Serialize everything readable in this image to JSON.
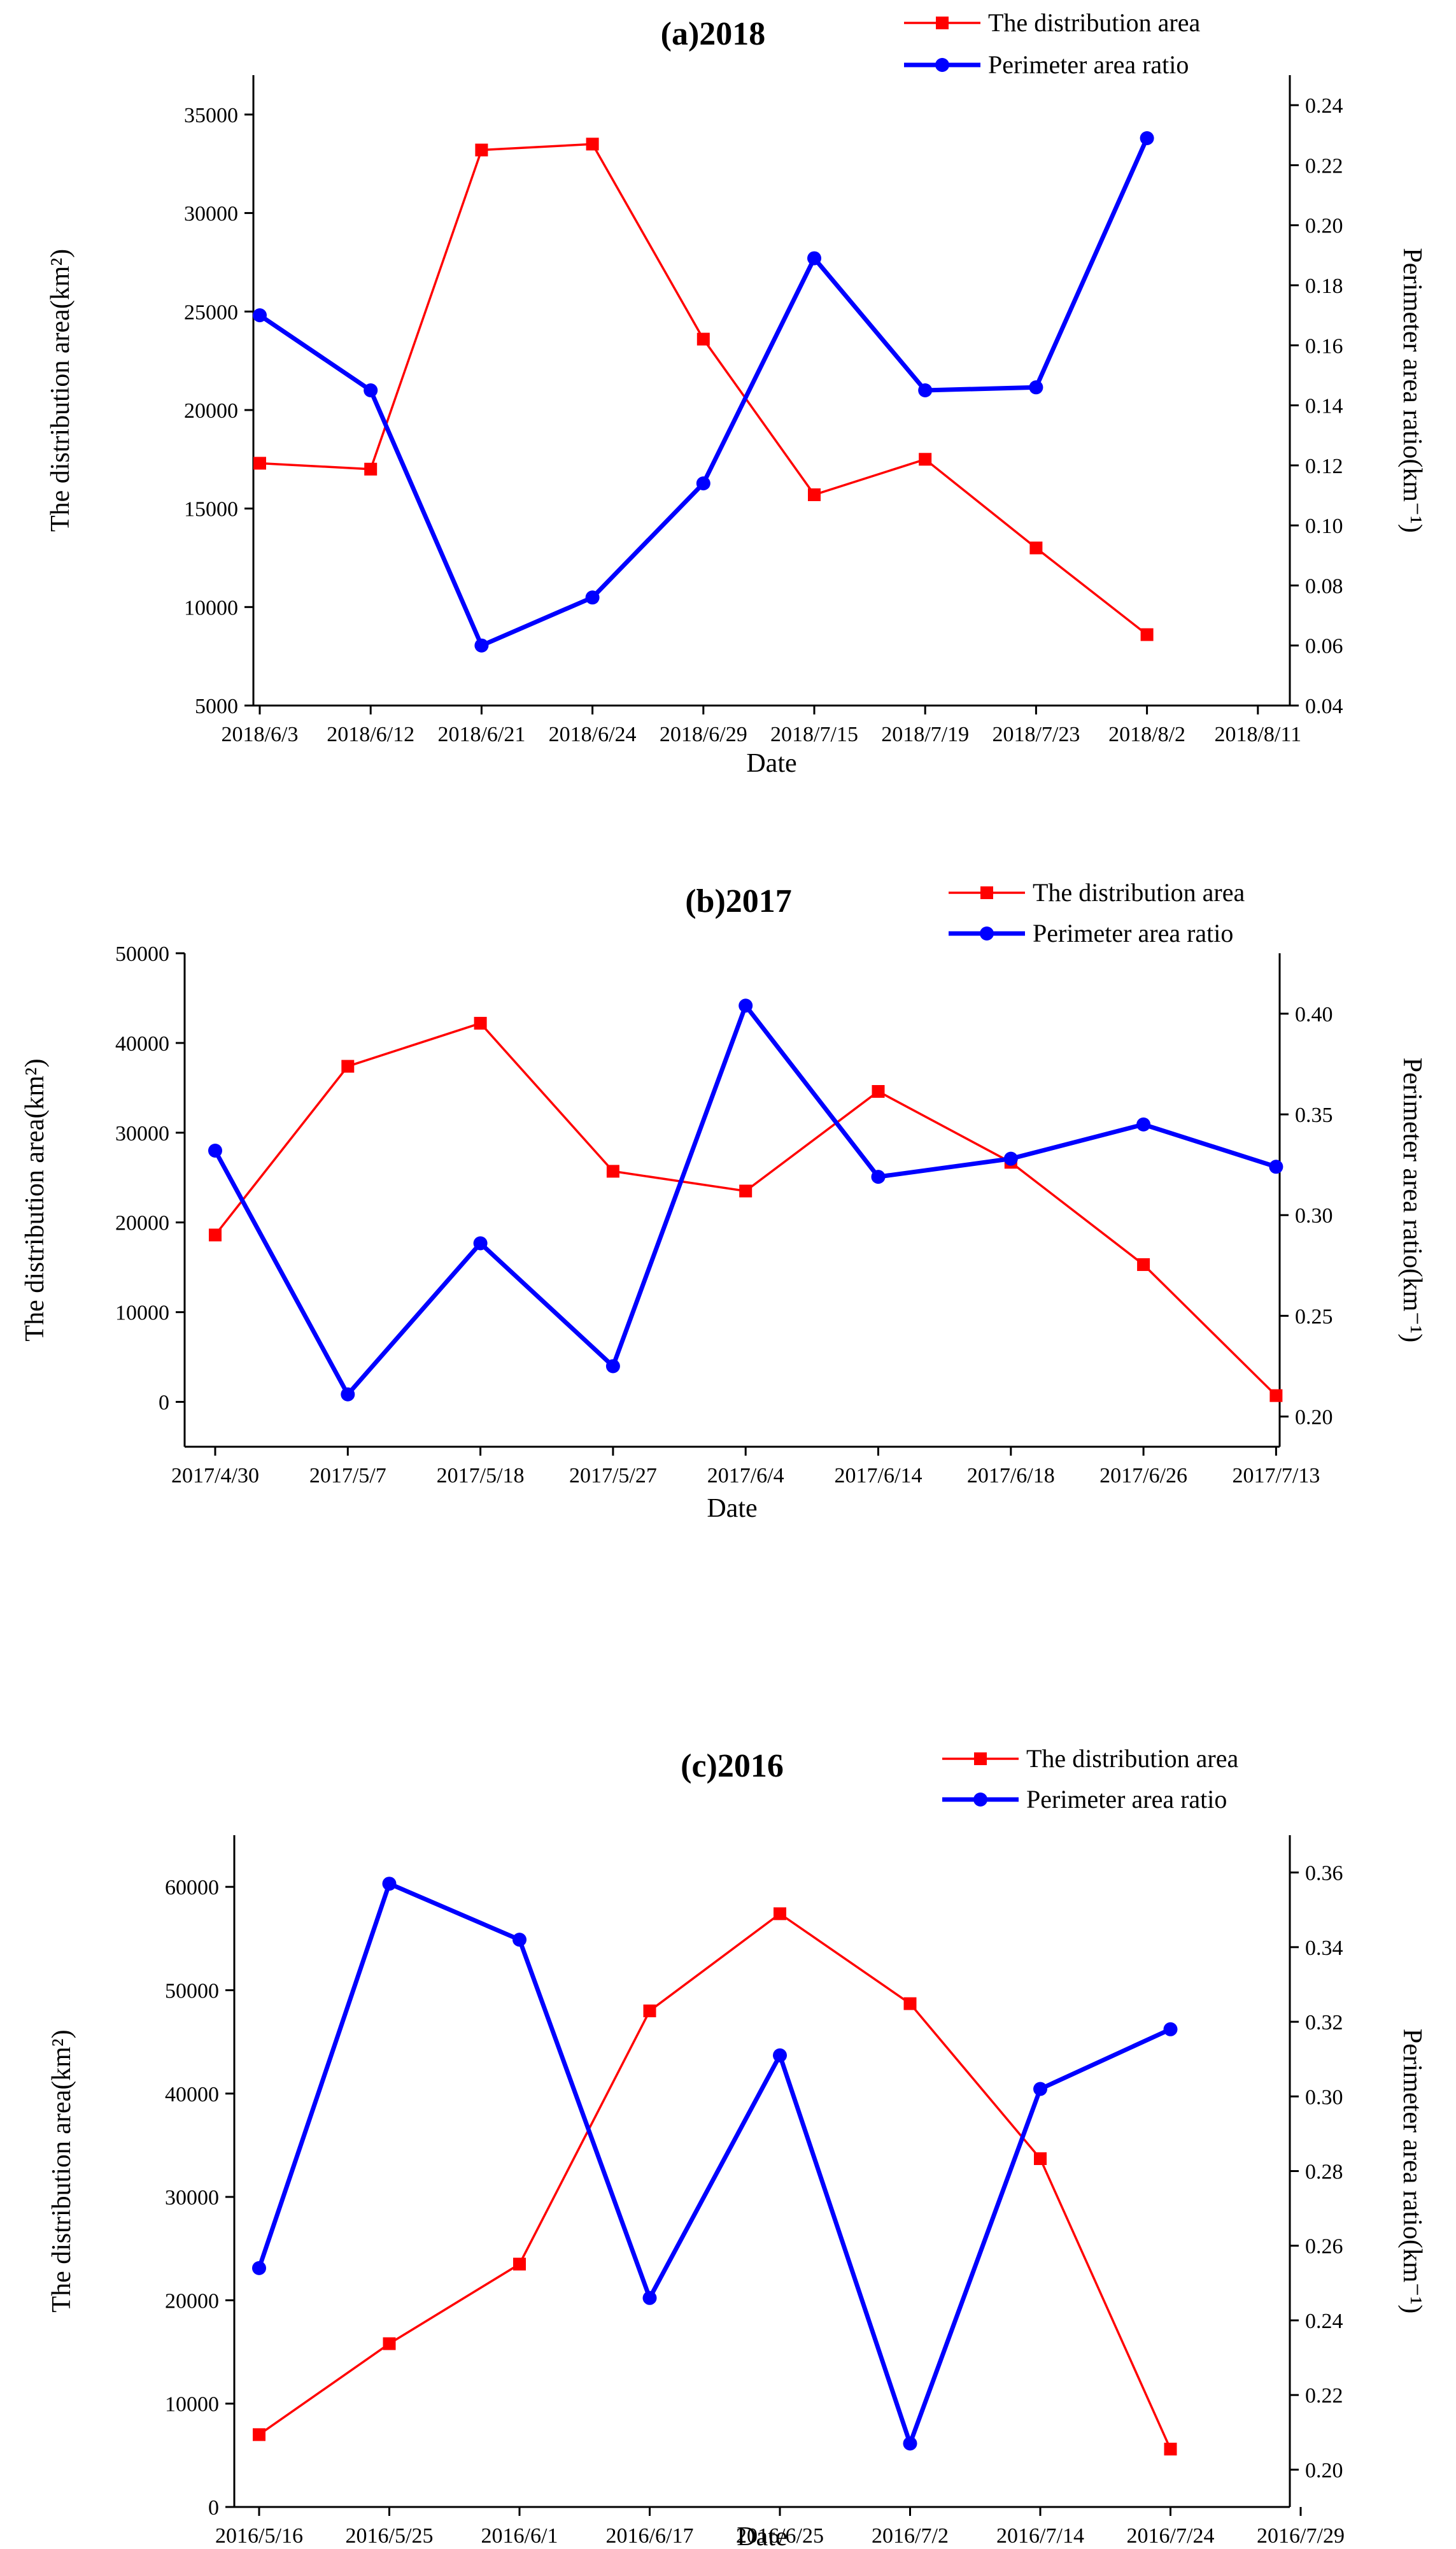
{
  "chart_data": [
    {
      "type": "line",
      "title": "(a)2018",
      "xlabel": "Date",
      "ylabel_left": "The distribution area(km²)",
      "ylabel_right": "Perimeter area ratio(km⁻¹)",
      "categories": [
        "2018/6/3",
        "2018/6/12",
        "2018/6/21",
        "2018/6/24",
        "2018/6/29",
        "2018/7/15",
        "2018/7/19",
        "2018/7/23",
        "2018/8/2",
        "2018/8/11"
      ],
      "ylim_left": [
        5000,
        37000
      ],
      "yticks_left": [
        5000,
        10000,
        15000,
        20000,
        25000,
        30000,
        35000
      ],
      "ylim_right": [
        0.04,
        0.25
      ],
      "yticks_right": [
        0.04,
        0.06,
        0.08,
        0.1,
        0.12,
        0.14,
        0.16,
        0.18,
        0.2,
        0.22,
        0.24
      ],
      "series": [
        {
          "name": "The distribution area",
          "axis": "left",
          "color": "#ff0000",
          "marker": "square",
          "values": [
            17300,
            17000,
            33200,
            33500,
            23600,
            15700,
            17500,
            13000,
            8600,
            null
          ]
        },
        {
          "name": "Perimeter area ratio",
          "axis": "right",
          "color": "#0000ff",
          "marker": "circle",
          "values": [
            0.17,
            0.145,
            0.06,
            0.076,
            0.114,
            0.189,
            0.145,
            0.146,
            0.229,
            null
          ]
        }
      ]
    },
    {
      "type": "line",
      "title": "(b)2017",
      "xlabel": "Date",
      "ylabel_left": "The distribution area(km²)",
      "ylabel_right": "Perimeter area ratio(km⁻¹)",
      "categories": [
        "2017/4/30",
        "2017/5/7",
        "2017/5/18",
        "2017/5/27",
        "2017/6/4",
        "2017/6/14",
        "2017/6/18",
        "2017/6/26",
        "2017/7/13"
      ],
      "ylim_left": [
        -5000,
        50000
      ],
      "yticks_left": [
        0,
        10000,
        20000,
        30000,
        40000,
        50000
      ],
      "ylim_right": [
        0.185,
        0.43
      ],
      "yticks_right": [
        0.2,
        0.25,
        0.3,
        0.35,
        0.4
      ],
      "series": [
        {
          "name": "The distribution area",
          "axis": "left",
          "color": "#ff0000",
          "marker": "square",
          "values": [
            18600,
            37400,
            42200,
            25700,
            23500,
            34600,
            26700,
            15300,
            700
          ]
        },
        {
          "name": "Perimeter area ratio",
          "axis": "right",
          "color": "#0000ff",
          "marker": "circle",
          "values": [
            0.332,
            0.211,
            0.286,
            0.225,
            0.404,
            0.319,
            0.328,
            0.345,
            0.324
          ]
        }
      ]
    },
    {
      "type": "line",
      "title": "(c)2016",
      "xlabel": "Date",
      "ylabel_left": "The distribution area(km²)",
      "ylabel_right": "Perimeter area ratio(km⁻¹)",
      "categories": [
        "2016/5/16",
        "2016/5/25",
        "2016/6/1",
        "2016/6/17",
        "2016/6/25",
        "2016/7/2",
        "2016/7/14",
        "2016/7/24",
        "2016/7/29"
      ],
      "ylim_left": [
        0,
        65000
      ],
      "yticks_left": [
        0,
        10000,
        20000,
        30000,
        40000,
        50000,
        60000
      ],
      "ylim_right": [
        0.19,
        0.37
      ],
      "yticks_right": [
        0.2,
        0.22,
        0.24,
        0.26,
        0.28,
        0.3,
        0.32,
        0.34,
        0.36
      ],
      "series": [
        {
          "name": "The distribution area",
          "axis": "left",
          "color": "#ff0000",
          "marker": "square",
          "values": [
            7000,
            15800,
            23500,
            48000,
            57400,
            48700,
            33700,
            5600,
            null
          ]
        },
        {
          "name": "Perimeter area ratio",
          "axis": "right",
          "color": "#0000ff",
          "marker": "circle",
          "values": [
            0.254,
            0.357,
            0.342,
            0.246,
            0.311,
            0.207,
            0.302,
            0.318,
            null
          ]
        }
      ]
    }
  ]
}
